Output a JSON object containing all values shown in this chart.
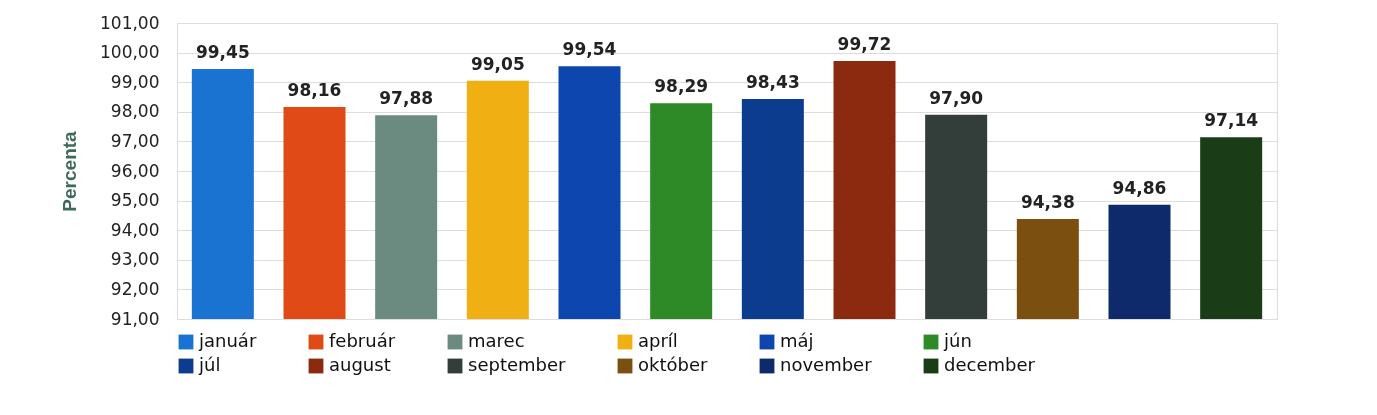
{
  "chart_data": {
    "type": "bar",
    "ylabel": "Percenta",
    "categories": [
      null,
      null,
      null,
      null,
      null,
      null,
      null,
      null,
      null,
      null,
      null,
      null
    ],
    "series": [
      {
        "name": "január",
        "color": "#1a73d0",
        "values": [
          99.45,
          null,
          null,
          null,
          null,
          null,
          null,
          null,
          null,
          null,
          null,
          null
        ],
        "value_labels": [
          "99,45",
          null,
          null,
          null,
          null,
          null,
          null,
          null,
          null,
          null,
          null,
          null
        ]
      },
      {
        "name": "február",
        "color": "#e04a16",
        "values": [
          null,
          98.16,
          null,
          null,
          null,
          null,
          null,
          null,
          null,
          null,
          null,
          null
        ],
        "value_labels": [
          null,
          "98,16",
          null,
          null,
          null,
          null,
          null,
          null,
          null,
          null,
          null,
          null
        ]
      },
      {
        "name": "marec",
        "color": "#6b8a80",
        "values": [
          null,
          null,
          97.88,
          null,
          null,
          null,
          null,
          null,
          null,
          null,
          null,
          null
        ],
        "value_labels": [
          null,
          null,
          "97,88",
          null,
          null,
          null,
          null,
          null,
          null,
          null,
          null,
          null
        ]
      },
      {
        "name": "apríl",
        "color": "#f0b014",
        "values": [
          null,
          null,
          null,
          99.05,
          null,
          null,
          null,
          null,
          null,
          null,
          null,
          null
        ],
        "value_labels": [
          null,
          null,
          null,
          "99,05",
          null,
          null,
          null,
          null,
          null,
          null,
          null,
          null
        ]
      },
      {
        "name": "máj",
        "color": "#0e46b0",
        "values": [
          null,
          null,
          null,
          null,
          99.54,
          null,
          null,
          null,
          null,
          null,
          null,
          null
        ],
        "value_labels": [
          null,
          null,
          null,
          null,
          "99,54",
          null,
          null,
          null,
          null,
          null,
          null,
          null
        ]
      },
      {
        "name": "jún",
        "color": "#2e8a26",
        "values": [
          null,
          null,
          null,
          null,
          null,
          98.29,
          null,
          null,
          null,
          null,
          null,
          null
        ],
        "value_labels": [
          null,
          null,
          null,
          null,
          null,
          "98,29",
          null,
          null,
          null,
          null,
          null,
          null
        ]
      },
      {
        "name": "júl",
        "color": "#0b3c8e",
        "values": [
          null,
          null,
          null,
          null,
          null,
          null,
          98.43,
          null,
          null,
          null,
          null,
          null
        ],
        "value_labels": [
          null,
          null,
          null,
          null,
          null,
          null,
          "98,43",
          null,
          null,
          null,
          null,
          null
        ]
      },
      {
        "name": "august",
        "color": "#8c2a10",
        "values": [
          null,
          null,
          null,
          null,
          null,
          null,
          null,
          99.72,
          null,
          null,
          null,
          null
        ],
        "value_labels": [
          null,
          null,
          null,
          null,
          null,
          null,
          null,
          "99,72",
          null,
          null,
          null,
          null
        ]
      },
      {
        "name": "september",
        "color": "#333d3a",
        "values": [
          null,
          null,
          null,
          null,
          null,
          null,
          null,
          null,
          97.9,
          null,
          null,
          null
        ],
        "value_labels": [
          null,
          null,
          null,
          null,
          null,
          null,
          null,
          null,
          "97,90",
          null,
          null,
          null
        ]
      },
      {
        "name": "október",
        "color": "#7a4f10",
        "values": [
          null,
          null,
          null,
          null,
          null,
          null,
          null,
          null,
          null,
          94.38,
          null,
          null
        ],
        "value_labels": [
          null,
          null,
          null,
          null,
          null,
          null,
          null,
          null,
          null,
          "94,38",
          null,
          null
        ]
      },
      {
        "name": "november",
        "color": "#0f2a6a",
        "values": [
          null,
          null,
          null,
          null,
          null,
          null,
          null,
          null,
          null,
          null,
          94.86,
          null
        ],
        "value_labels": [
          null,
          null,
          null,
          null,
          null,
          null,
          null,
          null,
          null,
          null,
          "94,86",
          null
        ]
      },
      {
        "name": "december",
        "color": "#1a3d18",
        "values": [
          null,
          null,
          null,
          null,
          null,
          null,
          null,
          null,
          null,
          null,
          null,
          97.14
        ],
        "value_labels": [
          null,
          null,
          null,
          null,
          null,
          null,
          null,
          null,
          null,
          null,
          null,
          "97,14"
        ]
      }
    ],
    "ylim": [
      91,
      101
    ],
    "yticks": [
      {
        "value": 91,
        "label": "91,00"
      },
      {
        "value": 92,
        "label": "92,00"
      },
      {
        "value": 93,
        "label": "93,00"
      },
      {
        "value": 94,
        "label": "94,00"
      },
      {
        "value": 95,
        "label": "95,00"
      },
      {
        "value": 96,
        "label": "96,00"
      },
      {
        "value": 97,
        "label": "97,00"
      },
      {
        "value": 98,
        "label": "98,00"
      },
      {
        "value": 99,
        "label": "99,00"
      },
      {
        "value": 100,
        "label": "100,00"
      },
      {
        "value": 101,
        "label": "101,00"
      }
    ],
    "grid": "y",
    "legend": "bottom",
    "tick_labels": "y"
  }
}
